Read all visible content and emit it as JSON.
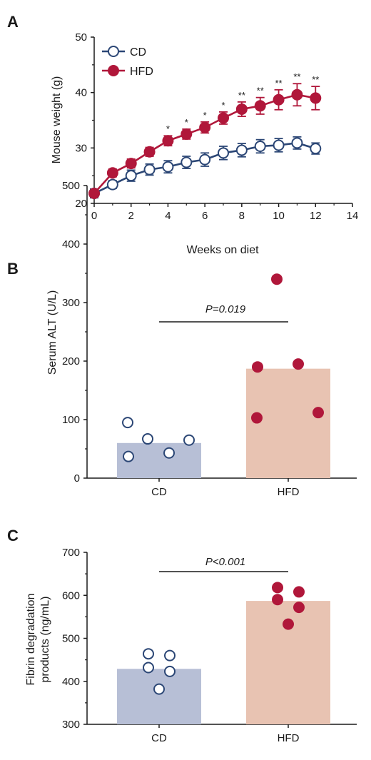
{
  "colors": {
    "cd": "#2b4675",
    "hfd": "#b0173a",
    "cd_bar": "#b7bfd6",
    "hfd_bar": "#e8c3b2",
    "axis": "#1a1a1a"
  },
  "chart_data": [
    {
      "type": "line",
      "panel": "A",
      "xlabel": "Weeks on diet",
      "ylabel": "Mouse weight (g)",
      "xlim": [
        0,
        14
      ],
      "ylim": [
        20,
        50
      ],
      "xticks": [
        "0",
        "2",
        "4",
        "6",
        "8",
        "10",
        "12",
        "14"
      ],
      "yticks": [
        "20",
        "30",
        "40",
        "50"
      ],
      "x": [
        0,
        1,
        2,
        3,
        4,
        5,
        6,
        7,
        8,
        9,
        10,
        11,
        12
      ],
      "legend": "top-left",
      "series": [
        {
          "name": "CD",
          "marker": "open-circle",
          "values": [
            21.8,
            23.4,
            25.0,
            26.1,
            26.6,
            27.4,
            27.9,
            29.1,
            29.6,
            30.3,
            30.5,
            30.9,
            29.9
          ],
          "errors": [
            0.8,
            0.7,
            1.0,
            1.0,
            1.1,
            1.1,
            1.2,
            1.2,
            1.2,
            1.2,
            1.2,
            1.1,
            1.0
          ]
        },
        {
          "name": "HFD",
          "marker": "filled-circle",
          "values": [
            21.8,
            25.5,
            27.2,
            29.3,
            31.3,
            32.5,
            33.7,
            35.4,
            37.0,
            37.6,
            38.7,
            39.6,
            39.0
          ],
          "errors": [
            0.6,
            0.7,
            0.8,
            0.8,
            0.9,
            0.9,
            1.0,
            1.1,
            1.3,
            1.5,
            1.8,
            2.0,
            2.1
          ]
        }
      ],
      "annotations": [
        {
          "x": 4,
          "text": "*"
        },
        {
          "x": 5,
          "text": "*"
        },
        {
          "x": 6,
          "text": "*"
        },
        {
          "x": 7,
          "text": "*"
        },
        {
          "x": 8,
          "text": "**"
        },
        {
          "x": 9,
          "text": "**"
        },
        {
          "x": 10,
          "text": "**"
        },
        {
          "x": 11,
          "text": "**"
        },
        {
          "x": 12,
          "text": "**"
        }
      ]
    },
    {
      "type": "bar",
      "panel": "B",
      "ylabel": "Serum ALT (U/L)",
      "categories": [
        "CD",
        "HFD"
      ],
      "ylim": [
        0,
        500
      ],
      "yticks": [
        "0",
        "100",
        "200",
        "300",
        "400",
        "500"
      ],
      "values": [
        60,
        187
      ],
      "points": [
        [
          95,
          37,
          67,
          43,
          65
        ],
        [
          103,
          190,
          340,
          195,
          112
        ]
      ],
      "pvalue": "P=0.019"
    },
    {
      "type": "bar",
      "panel": "C",
      "ylabel": "Fibrin degradation products (ng/mL)",
      "ylabel_lines": [
        "Fibrin degradation",
        "products (ng/mL)"
      ],
      "categories": [
        "CD",
        "HFD"
      ],
      "ylim": [
        300,
        700
      ],
      "yticks": [
        "300",
        "400",
        "500",
        "600",
        "700"
      ],
      "values": [
        429,
        587
      ],
      "points": [
        [
          464,
          432,
          382,
          460,
          423
        ],
        [
          618,
          590,
          533,
          608,
          572
        ]
      ],
      "pvalue": "P<0.001"
    }
  ]
}
